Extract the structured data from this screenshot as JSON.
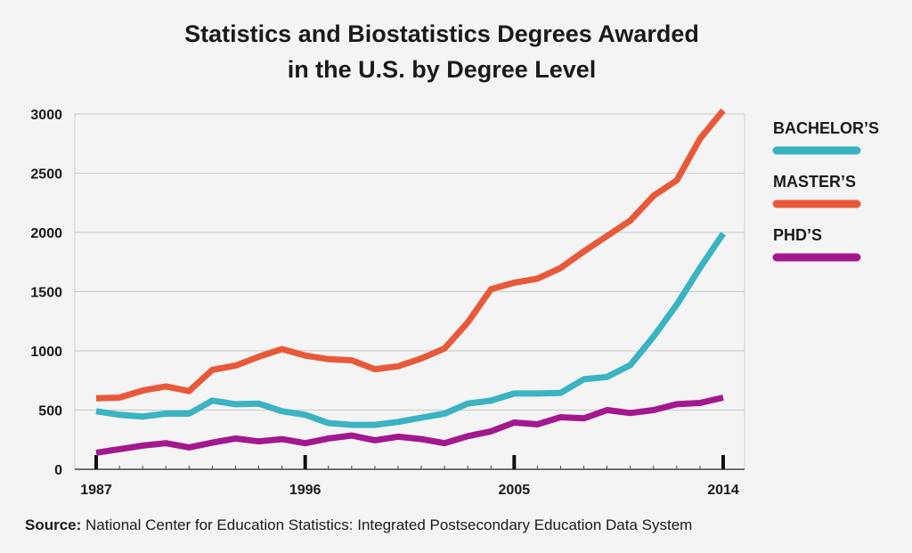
{
  "chart_data": {
    "type": "line",
    "title": "Statistics and Biostatistics Degrees Awarded",
    "title_line2": "in the U.S. by Degree Level",
    "xlabel": "",
    "ylabel": "",
    "xlim": [
      1987,
      2014
    ],
    "ylim": [
      0,
      3000
    ],
    "yticks": [
      0,
      500,
      1000,
      1500,
      2000,
      2500,
      3000
    ],
    "xticks": [
      1987,
      1996,
      2005,
      2014
    ],
    "grid": true,
    "legend_position": "right",
    "x": [
      1987,
      1988,
      1989,
      1990,
      1991,
      1992,
      1993,
      1994,
      1995,
      1996,
      1997,
      1998,
      1999,
      2000,
      2001,
      2002,
      2003,
      2004,
      2005,
      2006,
      2007,
      2008,
      2009,
      2010,
      2011,
      2012,
      2013,
      2014
    ],
    "series": [
      {
        "name": "BACHELOR’S",
        "color": "#3ab3c2",
        "values": [
          490,
          460,
          445,
          470,
          470,
          580,
          550,
          555,
          490,
          460,
          390,
          375,
          375,
          400,
          435,
          470,
          555,
          580,
          640,
          640,
          645,
          760,
          780,
          880,
          1120,
          1390,
          1700,
          1990
        ]
      },
      {
        "name": "MASTER’S",
        "color": "#e8593a",
        "values": [
          600,
          605,
          665,
          700,
          660,
          840,
          875,
          950,
          1015,
          960,
          930,
          920,
          845,
          870,
          935,
          1020,
          1240,
          1520,
          1575,
          1610,
          1700,
          1840,
          1970,
          2100,
          2310,
          2440,
          2790,
          3030
        ]
      },
      {
        "name": "PHD’S",
        "color": "#a3188e",
        "values": [
          140,
          170,
          200,
          220,
          185,
          225,
          260,
          235,
          255,
          220,
          260,
          285,
          245,
          275,
          255,
          220,
          280,
          320,
          395,
          380,
          440,
          430,
          500,
          475,
          500,
          550,
          560,
          605
        ]
      }
    ]
  },
  "source": {
    "label": "Source:",
    "text": "National Center for Education Statistics: Integrated Postsecondary Education Data System"
  }
}
